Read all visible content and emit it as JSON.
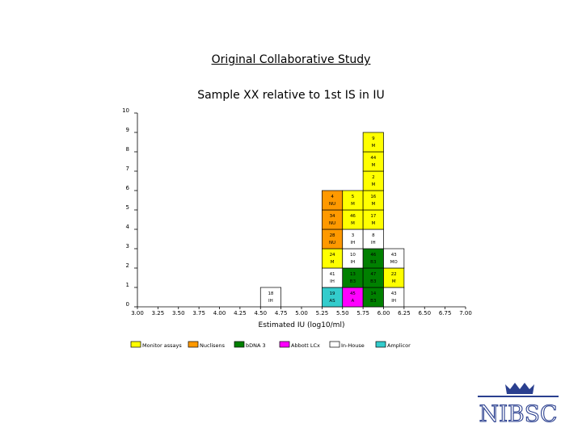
{
  "title": "Original Collaborative Study",
  "subtitle": "Sample XX relative to 1st IS in IU",
  "logo_text": "NIBSC",
  "colors": {
    "monitor": "#ffff00",
    "nuclisens": "#ff9900",
    "bdna": "#008000",
    "abbott": "#ff00ff",
    "inhouse": "#ffffff",
    "amplicor": "#33cccc",
    "logo": "#2a3f8f"
  },
  "chart_data": {
    "type": "bar",
    "subtype": "stacked-histogram",
    "xlabel": "Estimated IU (log10/ml)",
    "ylabel": "",
    "xlim": [
      3.0,
      7.0
    ],
    "ylim": [
      0,
      10
    ],
    "xticks": [
      "3.00",
      "3.25",
      "3.50",
      "3.75",
      "4.00",
      "4.25",
      "4.50",
      "4.75",
      "5.00",
      "5.25",
      "5.50",
      "5.75",
      "6.00",
      "6.25",
      "6.50",
      "6.75",
      "7.00"
    ],
    "yticks": [
      "0",
      "1",
      "2",
      "3",
      "4",
      "5",
      "6",
      "7",
      "8",
      "9",
      "10"
    ],
    "grid": false,
    "legend_position": "bottom",
    "legend": [
      {
        "key": "monitor",
        "label": "Monitor assays"
      },
      {
        "key": "nuclisens",
        "label": "Nuclisens"
      },
      {
        "key": "bdna",
        "label": "bDNA 3"
      },
      {
        "key": "abbott",
        "label": "Abbott LCx"
      },
      {
        "key": "inhouse",
        "label": "In-House"
      },
      {
        "key": "amplicor",
        "label": "Amplicor"
      }
    ],
    "bins": [
      {
        "x": 4.5,
        "boxes": [
          {
            "lab": "18",
            "method": "IH",
            "series": "inhouse"
          }
        ]
      },
      {
        "x": 5.25,
        "boxes": [
          {
            "lab": "19",
            "method": "AS",
            "series": "amplicor"
          },
          {
            "lab": "41",
            "method": "IH",
            "series": "inhouse"
          },
          {
            "lab": "24",
            "method": "M",
            "series": "monitor"
          },
          {
            "lab": "28",
            "method": "NU",
            "series": "nuclisens"
          },
          {
            "lab": "34",
            "method": "NU",
            "series": "nuclisens"
          },
          {
            "lab": "4",
            "method": "NU",
            "series": "nuclisens"
          }
        ]
      },
      {
        "x": 5.5,
        "boxes": [
          {
            "lab": "45",
            "method": "A",
            "series": "abbott"
          },
          {
            "lab": "13",
            "method": "B3",
            "series": "bdna"
          },
          {
            "lab": "10",
            "method": "IH",
            "series": "inhouse"
          },
          {
            "lab": "3",
            "method": "IH",
            "series": "inhouse"
          },
          {
            "lab": "46",
            "method": "M",
            "series": "monitor"
          },
          {
            "lab": "5",
            "method": "M",
            "series": "monitor"
          }
        ]
      },
      {
        "x": 5.75,
        "boxes": [
          {
            "lab": "14",
            "method": "B3",
            "series": "bdna"
          },
          {
            "lab": "47",
            "method": "B3",
            "series": "bdna"
          },
          {
            "lab": "46",
            "method": "B3",
            "series": "bdna"
          },
          {
            "lab": "8",
            "method": "IH",
            "series": "inhouse"
          },
          {
            "lab": "17",
            "method": "M",
            "series": "monitor"
          },
          {
            "lab": "16",
            "method": "M",
            "series": "monitor"
          },
          {
            "lab": "2",
            "method": "M",
            "series": "monitor"
          },
          {
            "lab": "44",
            "method": "M",
            "series": "monitor"
          },
          {
            "lab": "9",
            "method": "M",
            "series": "monitor"
          }
        ]
      },
      {
        "x": 6.0,
        "boxes": [
          {
            "lab": "43",
            "method": "IH",
            "series": "inhouse"
          },
          {
            "lab": "22",
            "method": "M",
            "series": "monitor"
          },
          {
            "lab": "43",
            "method": "MO",
            "series": "inhouse"
          }
        ]
      }
    ]
  }
}
